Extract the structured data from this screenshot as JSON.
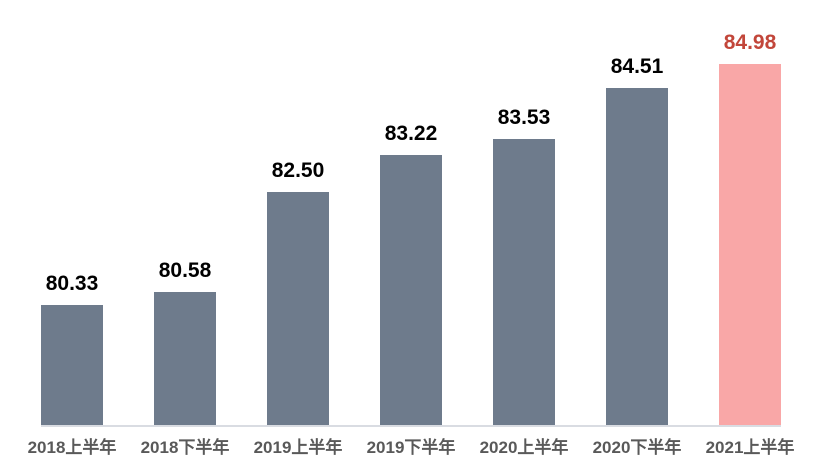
{
  "chart_data": {
    "type": "bar",
    "categories": [
      "2018上半年",
      "2018下半年",
      "2019上半年",
      "2019下半年",
      "2020上半年",
      "2020下半年",
      "2021上半年"
    ],
    "values": [
      80.33,
      80.58,
      82.5,
      83.22,
      83.53,
      84.51,
      84.98
    ],
    "value_labels": [
      "80.33",
      "80.58",
      "82.50",
      "83.22",
      "83.53",
      "84.51",
      "84.98"
    ],
    "title": "",
    "xlabel": "",
    "ylabel": "",
    "ylim": [
      78,
      86.2
    ],
    "grid": false,
    "legend": "none",
    "highlight_index": 6,
    "colors": {
      "bar": "#6e7b8c",
      "highlight_bar": "#f9a7a7",
      "value_text": "#000000",
      "highlight_value_text": "#c2463a",
      "axis_label_text": "#595959",
      "axis_line": "#d9dce2",
      "background": "#ffffff"
    }
  }
}
